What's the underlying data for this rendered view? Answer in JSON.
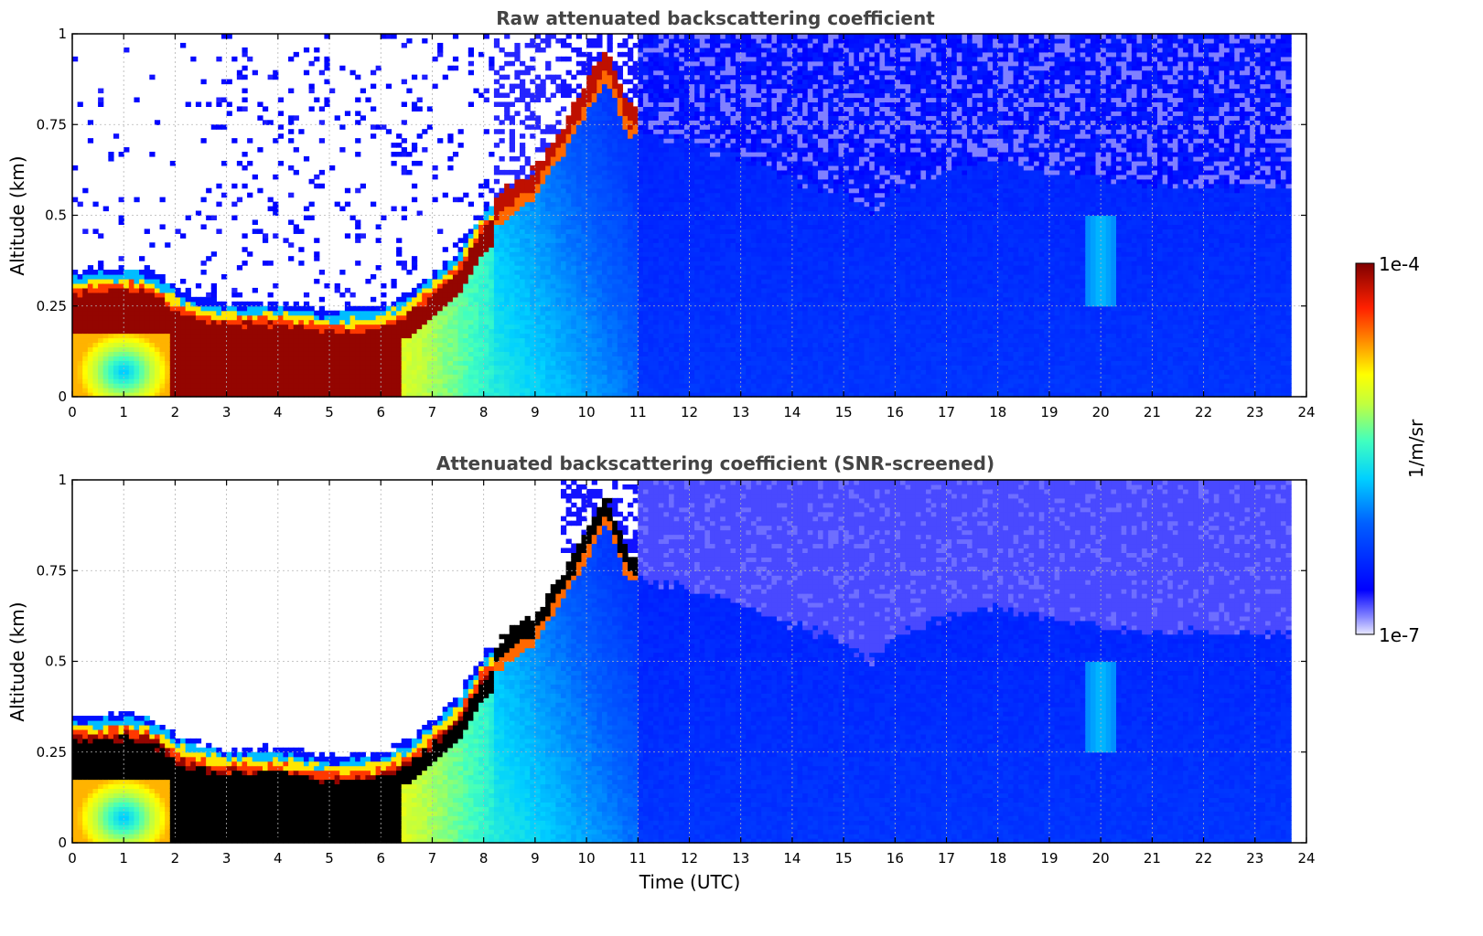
{
  "colors": {
    "jet_low": "#e8e8ff",
    "jet_high": "#7f0000",
    "screened_max": "#000000",
    "grid": "#b4b4b4"
  },
  "colorbar": {
    "min_label": "1e-7",
    "max_label": "1e-4",
    "unit_label": "1/m/sr",
    "scale": "log"
  },
  "xlabel": "Time (UTC)",
  "chart_data": [
    {
      "type": "heatmap",
      "title": "Raw attenuated backscattering coefficient",
      "xlabel": "Time (UTC)",
      "ylabel": "Altitude (km)",
      "xlim": [
        0,
        24
      ],
      "ylim": [
        0,
        1
      ],
      "x_ticks": [
        "0",
        "1",
        "2",
        "3",
        "4",
        "5",
        "6",
        "7",
        "8",
        "9",
        "10",
        "11",
        "12",
        "13",
        "14",
        "15",
        "16",
        "17",
        "18",
        "19",
        "20",
        "21",
        "22",
        "23",
        "24"
      ],
      "y_ticks": [
        "0",
        "0.25",
        "0.5",
        "0.75",
        "1"
      ],
      "grid": true,
      "data_end_hour": 23.7,
      "layer_top_km": [
        [
          0,
          0.35
        ],
        [
          0.5,
          0.35
        ],
        [
          1,
          0.36
        ],
        [
          1.5,
          0.35
        ],
        [
          2,
          0.3
        ],
        [
          2.5,
          0.27
        ],
        [
          3,
          0.26
        ],
        [
          4,
          0.26
        ],
        [
          5,
          0.24
        ],
        [
          6,
          0.25
        ],
        [
          6.5,
          0.28
        ],
        [
          7,
          0.34
        ],
        [
          7.5,
          0.4
        ],
        [
          8,
          0.52
        ],
        [
          8.5,
          0.58
        ],
        [
          9,
          0.63
        ],
        [
          9.5,
          0.74
        ],
        [
          10,
          0.86
        ],
        [
          10.4,
          0.96
        ],
        [
          10.8,
          0.8
        ]
      ],
      "haze_top_km": [
        [
          11,
          0.73
        ],
        [
          12,
          0.7
        ],
        [
          13,
          0.66
        ],
        [
          14,
          0.6
        ],
        [
          15,
          0.56
        ],
        [
          15.5,
          0.5
        ],
        [
          16,
          0.57
        ],
        [
          17,
          0.62
        ],
        [
          18,
          0.65
        ],
        [
          19,
          0.62
        ],
        [
          20,
          0.6
        ],
        [
          21,
          0.58
        ],
        [
          22,
          0.58
        ],
        [
          23,
          0.58
        ],
        [
          23.7,
          0.58
        ]
      ],
      "feature_plume": {
        "hour": 20,
        "altitude_km": [
          0.25,
          0.5
        ]
      }
    },
    {
      "type": "heatmap",
      "title": "Attenuated backscattering coefficient (SNR-screened)",
      "xlabel": "Time (UTC)",
      "ylabel": "Altitude (km)",
      "xlim": [
        0,
        24
      ],
      "ylim": [
        0,
        1
      ],
      "x_ticks": [
        "0",
        "1",
        "2",
        "3",
        "4",
        "5",
        "6",
        "7",
        "8",
        "9",
        "10",
        "11",
        "12",
        "13",
        "14",
        "15",
        "16",
        "17",
        "18",
        "19",
        "20",
        "21",
        "22",
        "23",
        "24"
      ],
      "y_ticks": [
        "0",
        "0.25",
        "0.5",
        "0.75",
        "1"
      ],
      "grid": true,
      "data_end_hour": 23.7,
      "screened_max_shown_black": true
    }
  ]
}
